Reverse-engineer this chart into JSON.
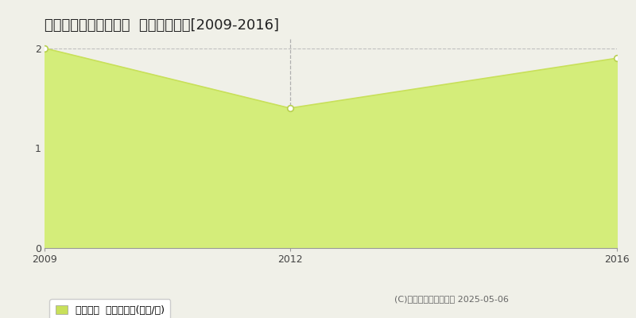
{
  "title": "中新川郡立山町東大森  土地価格推移[2009-2016]",
  "x_values": [
    2009,
    2012,
    2016
  ],
  "y_values": [
    2.0,
    1.4,
    1.9
  ],
  "line_color": "#c8e05a",
  "fill_color": "#d4ed7a",
  "marker_color": "#ffffff",
  "marker_edge_color": "#b8cf50",
  "background_color": "#f0f0e8",
  "plot_bg_color": "#f0f0e8",
  "grid_color": "#cccccc",
  "xlim": [
    2009,
    2016
  ],
  "ylim": [
    0,
    2.1
  ],
  "yticks": [
    0,
    1,
    2
  ],
  "xticks": [
    2009,
    2012,
    2016
  ],
  "legend_label": "土地価格  平均坪単価(万円/坪)",
  "copyright": "(C)土地価格ドットコム 2025-05-06",
  "dashed_x": 2012,
  "title_fontsize": 13,
  "tick_fontsize": 9,
  "legend_fontsize": 9
}
